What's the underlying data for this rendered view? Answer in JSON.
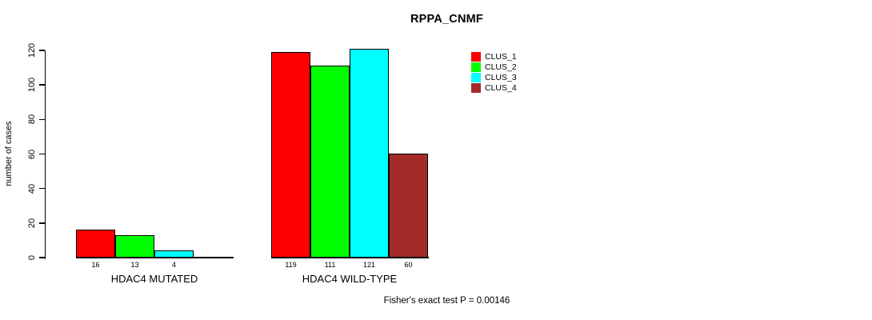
{
  "chart_data": {
    "type": "bar",
    "title": "RPPA_CNMF",
    "ylabel": "number of cases",
    "xlabel": "",
    "ylim": [
      0,
      120
    ],
    "yticks": [
      0,
      20,
      40,
      60,
      80,
      100,
      120
    ],
    "grid": false,
    "legend_position": "top-right",
    "categories": [
      "HDAC4 MUTATED",
      "HDAC4 WILD-TYPE"
    ],
    "series": [
      {
        "name": "CLUS_1",
        "color": "#FF0000",
        "values": [
          16,
          119
        ]
      },
      {
        "name": "CLUS_2",
        "color": "#00FF00",
        "values": [
          13,
          111
        ]
      },
      {
        "name": "CLUS_3",
        "color": "#00FFFF",
        "values": [
          4,
          121
        ]
      },
      {
        "name": "CLUS_4",
        "color": "#A52A2A",
        "values": [
          0,
          60
        ]
      }
    ],
    "bar_value_labels": [
      [
        "16",
        "13",
        "4",
        ""
      ],
      [
        "119",
        "111",
        "121",
        "60"
      ]
    ],
    "annotation": "Fisher's exact test P = 0.00146"
  }
}
